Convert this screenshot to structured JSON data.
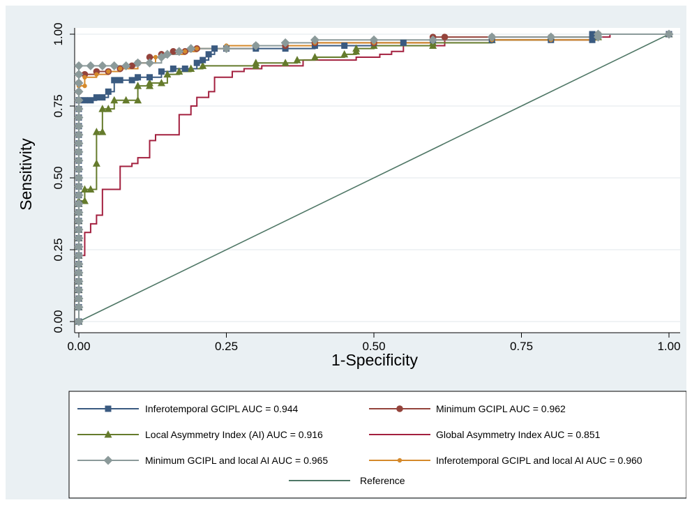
{
  "chart_data": {
    "type": "line",
    "xlabel": "1-Specificity",
    "ylabel": "Sensitivity",
    "xlim": [
      0,
      1
    ],
    "ylim": [
      0,
      1
    ],
    "x_ticks": [
      "0.00",
      "0.25",
      "0.50",
      "0.75",
      "1.00"
    ],
    "y_ticks": [
      "0.00",
      "0.25",
      "0.50",
      "0.75",
      "1.00"
    ],
    "grid": true,
    "legend_position": "bottom",
    "series": [
      {
        "name": "Inferotemporal GCIPL AUC = 0.944",
        "color": "#3a5a80",
        "marker": "square",
        "step": true,
        "points": [
          [
            0,
            0
          ],
          [
            0,
            0.77
          ],
          [
            0.01,
            0.77
          ],
          [
            0.02,
            0.77
          ],
          [
            0.03,
            0.78
          ],
          [
            0.04,
            0.78
          ],
          [
            0.05,
            0.8
          ],
          [
            0.06,
            0.84
          ],
          [
            0.07,
            0.84
          ],
          [
            0.09,
            0.84
          ],
          [
            0.1,
            0.85
          ],
          [
            0.12,
            0.85
          ],
          [
            0.14,
            0.87
          ],
          [
            0.16,
            0.88
          ],
          [
            0.18,
            0.88
          ],
          [
            0.2,
            0.9
          ],
          [
            0.21,
            0.91
          ],
          [
            0.22,
            0.93
          ],
          [
            0.23,
            0.95
          ],
          [
            0.25,
            0.95
          ],
          [
            0.3,
            0.95
          ],
          [
            0.35,
            0.95
          ],
          [
            0.4,
            0.96
          ],
          [
            0.45,
            0.96
          ],
          [
            0.5,
            0.97
          ],
          [
            0.55,
            0.97
          ],
          [
            0.6,
            0.98
          ],
          [
            0.7,
            0.98
          ],
          [
            0.8,
            0.98
          ],
          [
            0.87,
            0.98
          ],
          [
            0.87,
            1
          ],
          [
            1,
            1
          ]
        ]
      },
      {
        "name": "Minimum GCIPL AUC = 0.962",
        "color": "#94433b",
        "marker": "circle",
        "step": true,
        "points": [
          [
            0,
            0
          ],
          [
            0,
            0.86
          ],
          [
            0.01,
            0.86
          ],
          [
            0.03,
            0.87
          ],
          [
            0.05,
            0.87
          ],
          [
            0.07,
            0.88
          ],
          [
            0.09,
            0.89
          ],
          [
            0.1,
            0.9
          ],
          [
            0.12,
            0.92
          ],
          [
            0.14,
            0.93
          ],
          [
            0.16,
            0.94
          ],
          [
            0.18,
            0.94
          ],
          [
            0.2,
            0.95
          ],
          [
            0.25,
            0.95
          ],
          [
            0.3,
            0.96
          ],
          [
            0.35,
            0.96
          ],
          [
            0.4,
            0.97
          ],
          [
            0.5,
            0.97
          ],
          [
            0.6,
            0.99
          ],
          [
            0.62,
            0.99
          ],
          [
            0.7,
            0.99
          ],
          [
            0.8,
            0.99
          ],
          [
            0.88,
            1
          ],
          [
            1,
            1
          ]
        ]
      },
      {
        "name": "Local Asymmetry Index (AI) AUC = 0.916",
        "color": "#657b2c",
        "marker": "triangle",
        "step": true,
        "points": [
          [
            0,
            0
          ],
          [
            0,
            0.42
          ],
          [
            0.01,
            0.42
          ],
          [
            0.01,
            0.46
          ],
          [
            0.02,
            0.46
          ],
          [
            0.03,
            0.55
          ],
          [
            0.03,
            0.66
          ],
          [
            0.04,
            0.66
          ],
          [
            0.04,
            0.74
          ],
          [
            0.05,
            0.74
          ],
          [
            0.06,
            0.77
          ],
          [
            0.08,
            0.77
          ],
          [
            0.1,
            0.77
          ],
          [
            0.1,
            0.82
          ],
          [
            0.12,
            0.82
          ],
          [
            0.12,
            0.83
          ],
          [
            0.14,
            0.83
          ],
          [
            0.15,
            0.86
          ],
          [
            0.17,
            0.87
          ],
          [
            0.19,
            0.88
          ],
          [
            0.21,
            0.89
          ],
          [
            0.3,
            0.89
          ],
          [
            0.3,
            0.9
          ],
          [
            0.35,
            0.9
          ],
          [
            0.37,
            0.91
          ],
          [
            0.4,
            0.92
          ],
          [
            0.45,
            0.93
          ],
          [
            0.47,
            0.94
          ],
          [
            0.47,
            0.95
          ],
          [
            0.5,
            0.96
          ],
          [
            0.6,
            0.96
          ],
          [
            0.6,
            0.97
          ],
          [
            0.7,
            0.98
          ],
          [
            0.8,
            0.99
          ],
          [
            0.88,
            0.99
          ],
          [
            0.88,
            1
          ],
          [
            1,
            1
          ]
        ]
      },
      {
        "name": "Global Asymmetry Index AUC = 0.851",
        "color": "#a3203f",
        "marker": "none",
        "step": true,
        "points": [
          [
            0,
            0
          ],
          [
            0,
            0.23
          ],
          [
            0.01,
            0.23
          ],
          [
            0.01,
            0.31
          ],
          [
            0.02,
            0.31
          ],
          [
            0.02,
            0.34
          ],
          [
            0.03,
            0.34
          ],
          [
            0.03,
            0.37
          ],
          [
            0.04,
            0.37
          ],
          [
            0.04,
            0.46
          ],
          [
            0.07,
            0.46
          ],
          [
            0.07,
            0.54
          ],
          [
            0.09,
            0.54
          ],
          [
            0.09,
            0.55
          ],
          [
            0.1,
            0.55
          ],
          [
            0.1,
            0.57
          ],
          [
            0.11,
            0.57
          ],
          [
            0.12,
            0.63
          ],
          [
            0.13,
            0.63
          ],
          [
            0.13,
            0.65
          ],
          [
            0.17,
            0.65
          ],
          [
            0.17,
            0.72
          ],
          [
            0.18,
            0.72
          ],
          [
            0.19,
            0.75
          ],
          [
            0.2,
            0.75
          ],
          [
            0.2,
            0.78
          ],
          [
            0.21,
            0.78
          ],
          [
            0.22,
            0.8
          ],
          [
            0.23,
            0.85
          ],
          [
            0.26,
            0.85
          ],
          [
            0.26,
            0.87
          ],
          [
            0.28,
            0.87
          ],
          [
            0.28,
            0.88
          ],
          [
            0.31,
            0.88
          ],
          [
            0.31,
            0.89
          ],
          [
            0.38,
            0.89
          ],
          [
            0.38,
            0.91
          ],
          [
            0.47,
            0.91
          ],
          [
            0.47,
            0.92
          ],
          [
            0.51,
            0.92
          ],
          [
            0.51,
            0.93
          ],
          [
            0.53,
            0.93
          ],
          [
            0.53,
            0.94
          ],
          [
            0.55,
            0.94
          ],
          [
            0.55,
            0.96
          ],
          [
            0.62,
            0.96
          ],
          [
            0.62,
            0.98
          ],
          [
            0.87,
            0.98
          ],
          [
            0.87,
            0.99
          ],
          [
            0.9,
            0.99
          ],
          [
            0.9,
            1
          ],
          [
            1,
            1
          ]
        ]
      },
      {
        "name": "Minimum GCIPL and local AI AUC = 0.965",
        "color": "#8b9a9a",
        "marker": "diamond",
        "step": true,
        "points": [
          [
            0,
            0
          ],
          [
            0,
            0.89
          ],
          [
            0.02,
            0.89
          ],
          [
            0.04,
            0.89
          ],
          [
            0.06,
            0.89
          ],
          [
            0.08,
            0.89
          ],
          [
            0.1,
            0.9
          ],
          [
            0.12,
            0.9
          ],
          [
            0.14,
            0.92
          ],
          [
            0.15,
            0.93
          ],
          [
            0.17,
            0.94
          ],
          [
            0.19,
            0.95
          ],
          [
            0.25,
            0.95
          ],
          [
            0.3,
            0.96
          ],
          [
            0.35,
            0.97
          ],
          [
            0.4,
            0.98
          ],
          [
            0.5,
            0.98
          ],
          [
            0.6,
            0.98
          ],
          [
            0.7,
            0.99
          ],
          [
            0.8,
            0.99
          ],
          [
            0.88,
            0.99
          ],
          [
            0.88,
            1
          ],
          [
            1,
            1
          ]
        ]
      },
      {
        "name": "Inferotemporal GCIPL and local AI AUC = 0.960",
        "color": "#d5892b",
        "marker": "small-circle",
        "step": true,
        "points": [
          [
            0,
            0
          ],
          [
            0,
            0.82
          ],
          [
            0.01,
            0.82
          ],
          [
            0.01,
            0.85
          ],
          [
            0.03,
            0.86
          ],
          [
            0.05,
            0.87
          ],
          [
            0.07,
            0.88
          ],
          [
            0.1,
            0.9
          ],
          [
            0.13,
            0.92
          ],
          [
            0.15,
            0.93
          ],
          [
            0.18,
            0.94
          ],
          [
            0.2,
            0.95
          ],
          [
            0.25,
            0.96
          ],
          [
            0.3,
            0.96
          ],
          [
            0.4,
            0.97
          ],
          [
            0.5,
            0.97
          ],
          [
            0.6,
            0.98
          ],
          [
            0.7,
            0.98
          ],
          [
            0.8,
            0.98
          ],
          [
            0.88,
            0.99
          ],
          [
            0.88,
            1
          ],
          [
            1,
            1
          ]
        ]
      },
      {
        "name": "Reference",
        "color": "#4f7766",
        "marker": "none",
        "step": false,
        "points": [
          [
            0,
            0
          ],
          [
            1,
            1
          ]
        ]
      }
    ]
  }
}
